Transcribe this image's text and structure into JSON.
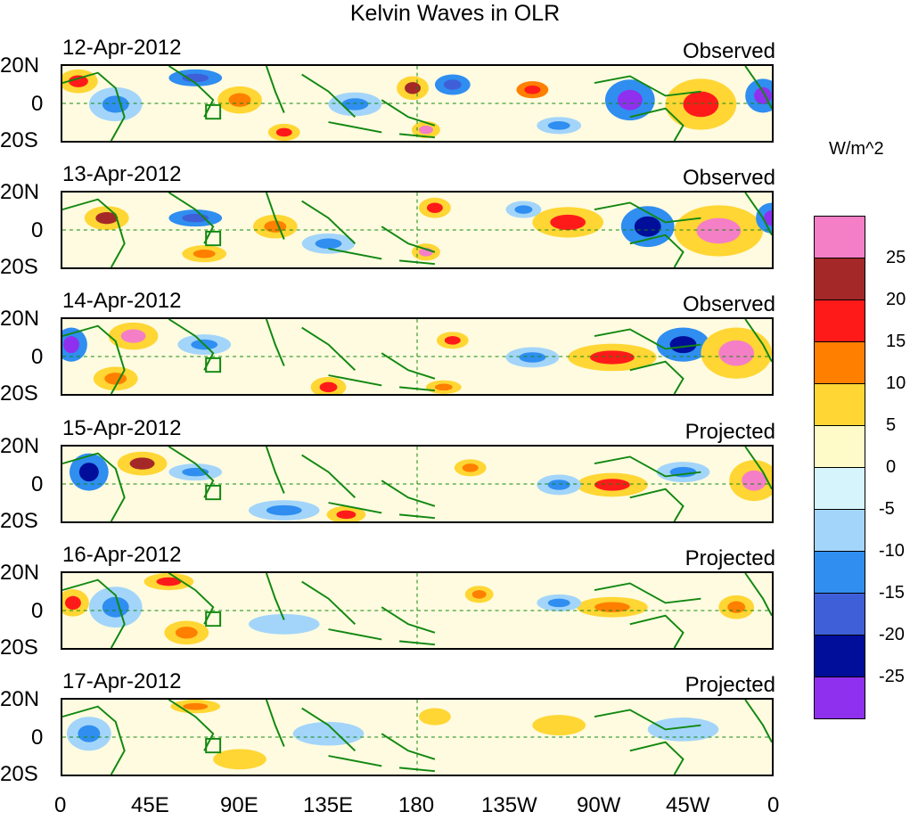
{
  "title": "Kelvin Waves in OLR",
  "panels": [
    {
      "date": "12-Apr-2012",
      "status": "Observed"
    },
    {
      "date": "13-Apr-2012",
      "status": "Observed"
    },
    {
      "date": "14-Apr-2012",
      "status": "Observed"
    },
    {
      "date": "15-Apr-2012",
      "status": "Projected"
    },
    {
      "date": "16-Apr-2012",
      "status": "Projected"
    },
    {
      "date": "17-Apr-2012",
      "status": "Projected"
    }
  ],
  "lat_labels": {
    "north": "20N",
    "equator": "0",
    "south": "20S"
  },
  "lon_labels": [
    "0",
    "45E",
    "90E",
    "135E",
    "180",
    "135W",
    "90W",
    "45W",
    "0"
  ],
  "colorbar": {
    "units": "W/m^2",
    "labels": [
      "25",
      "20",
      "15",
      "10",
      "5",
      "0",
      "-5",
      "-10",
      "-15",
      "-20",
      "-25"
    ],
    "colors": [
      "#f47fc6",
      "#a42828",
      "#ff1a1a",
      "#ff7f00",
      "#ffd633",
      "#fffbc8",
      "#d6f4fb",
      "#a3d5fa",
      "#2f8ef0",
      "#3f5fd8",
      "#000e9a",
      "#8f30ee"
    ]
  },
  "map_colors": {
    "land": "#118811",
    "background": "#fffbe0"
  }
}
